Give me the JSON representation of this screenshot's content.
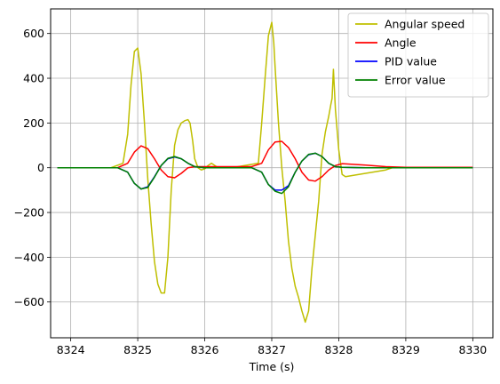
{
  "chart_data": {
    "type": "line",
    "title": "",
    "xlabel": "Time (s)",
    "ylabel": "",
    "xlim": [
      8323.7,
      8330.3
    ],
    "ylim": [
      -760,
      710
    ],
    "xticks": [
      8324,
      8325,
      8326,
      8327,
      8328,
      8329,
      8330
    ],
    "yticks": [
      -600,
      -400,
      -200,
      0,
      200,
      400,
      600
    ],
    "grid": true,
    "legend": {
      "position": "top-right"
    },
    "series": [
      {
        "name": "Angular speed",
        "color": "#bfbf00",
        "x": [
          8323.8,
          8324.6,
          8324.78,
          8324.85,
          8324.9,
          8324.95,
          8325.0,
          8325.05,
          8325.1,
          8325.15,
          8325.2,
          8325.25,
          8325.3,
          8325.35,
          8325.4,
          8325.45,
          8325.5,
          8325.55,
          8325.6,
          8325.65,
          8325.7,
          8325.75,
          8325.78,
          8325.82,
          8325.85,
          8325.9,
          8325.95,
          8326.0,
          8326.05,
          8326.1,
          8326.2,
          8326.4,
          8326.8,
          8326.85,
          8326.9,
          8326.95,
          8327.0,
          8327.03,
          8327.05,
          8327.1,
          8327.15,
          8327.2,
          8327.25,
          8327.3,
          8327.35,
          8327.4,
          8327.45,
          8327.5,
          8327.55,
          8327.6,
          8327.65,
          8327.7,
          8327.75,
          8327.8,
          8327.85,
          8327.88,
          8327.9,
          8327.92,
          8327.95,
          8328.0,
          8328.05,
          8328.1,
          8328.2,
          8328.3,
          8328.4,
          8328.5,
          8328.6,
          8328.7,
          8328.8,
          8329.0,
          8330.0
        ],
        "values": [
          0,
          0,
          20,
          150,
          370,
          520,
          535,
          420,
          200,
          -50,
          -250,
          -420,
          -520,
          -560,
          -560,
          -400,
          -100,
          100,
          170,
          200,
          210,
          215,
          200,
          120,
          40,
          0,
          -10,
          -5,
          10,
          20,
          0,
          0,
          20,
          200,
          400,
          590,
          650,
          560,
          450,
          200,
          0,
          -150,
          -330,
          -450,
          -530,
          -580,
          -640,
          -690,
          -640,
          -450,
          -300,
          -150,
          60,
          160,
          230,
          280,
          310,
          440,
          260,
          80,
          -30,
          -40,
          -35,
          -30,
          -25,
          -20,
          -15,
          -10,
          0,
          0,
          0
        ]
      },
      {
        "name": "Angle",
        "color": "#ff0000",
        "x": [
          8323.8,
          8324.7,
          8324.85,
          8324.95,
          8325.05,
          8325.15,
          8325.25,
          8325.35,
          8325.45,
          8325.55,
          8325.65,
          8325.75,
          8325.85,
          8326.0,
          8326.5,
          8326.7,
          8326.85,
          8326.95,
          8327.05,
          8327.15,
          8327.25,
          8327.35,
          8327.45,
          8327.55,
          8327.65,
          8327.75,
          8327.85,
          8327.95,
          8328.05,
          8328.4,
          8328.7,
          8329.0,
          8330.0
        ],
        "values": [
          0,
          0,
          20,
          70,
          98,
          85,
          40,
          -10,
          -40,
          -45,
          -25,
          0,
          5,
          5,
          5,
          5,
          20,
          80,
          115,
          118,
          90,
          40,
          -20,
          -55,
          -60,
          -40,
          -10,
          10,
          18,
          12,
          5,
          2,
          2
        ]
      },
      {
        "name": "PID value",
        "color": "#0000ff",
        "x": [
          8323.8,
          8324.7,
          8324.85,
          8324.95,
          8325.05,
          8325.15,
          8325.25,
          8325.35,
          8325.45,
          8325.55,
          8325.65,
          8325.75,
          8325.85,
          8326.0,
          8326.5,
          8326.7,
          8326.85,
          8326.95,
          8327.05,
          8327.15,
          8327.25,
          8327.35,
          8327.45,
          8327.55,
          8327.65,
          8327.75,
          8327.85,
          8327.95,
          8328.05,
          8328.4,
          8330.0
        ],
        "values": [
          0,
          0,
          -20,
          -70,
          -95,
          -85,
          -40,
          10,
          40,
          48,
          40,
          20,
          5,
          0,
          0,
          0,
          -20,
          -75,
          -100,
          -100,
          -80,
          -20,
          30,
          58,
          65,
          50,
          20,
          5,
          2,
          0,
          0
        ]
      },
      {
        "name": "Error value",
        "color": "#008000",
        "x": [
          8323.8,
          8324.7,
          8324.85,
          8324.95,
          8325.05,
          8325.15,
          8325.25,
          8325.35,
          8325.45,
          8325.55,
          8325.65,
          8325.75,
          8325.85,
          8326.0,
          8326.5,
          8326.7,
          8326.85,
          8326.95,
          8327.05,
          8327.15,
          8327.25,
          8327.35,
          8327.45,
          8327.55,
          8327.65,
          8327.75,
          8327.85,
          8327.95,
          8328.05,
          8328.4,
          8330.0
        ],
        "values": [
          0,
          0,
          -20,
          -70,
          -95,
          -88,
          -42,
          10,
          42,
          50,
          40,
          20,
          5,
          0,
          0,
          0,
          -20,
          -75,
          -105,
          -115,
          -85,
          -20,
          30,
          60,
          65,
          50,
          20,
          5,
          2,
          0,
          0
        ]
      }
    ]
  }
}
